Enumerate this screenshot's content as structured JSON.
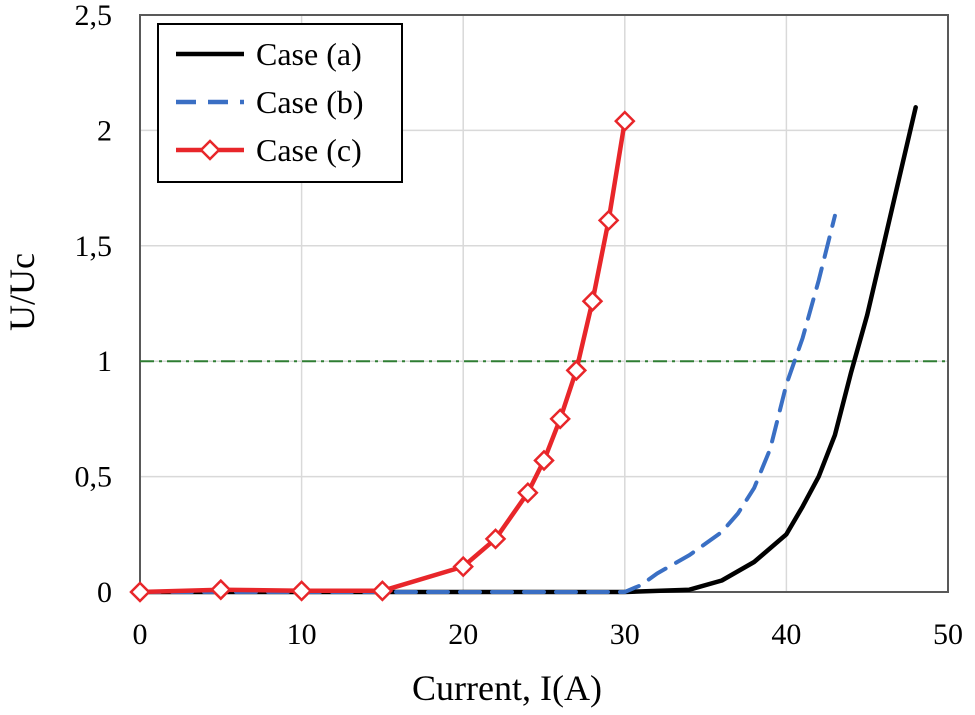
{
  "chart_data": {
    "type": "line",
    "xlabel": "Current, I(A)",
    "ylabel": "U/Uc",
    "xlim": [
      0,
      50
    ],
    "ylim": [
      0,
      2.5
    ],
    "x_ticks": [
      0,
      10,
      20,
      30,
      40,
      50
    ],
    "y_ticks": [
      0,
      0.5,
      1,
      1.5,
      2,
      2.5
    ],
    "x_tick_labels": [
      "0",
      "10",
      "20",
      "30",
      "40",
      "50"
    ],
    "y_tick_labels": [
      "0",
      "0,5",
      "1",
      "1,5",
      "2",
      "2,5"
    ],
    "grid": true,
    "legend_position": "top-left",
    "reference_line": {
      "y": 1,
      "color": "#2e7d32",
      "style": "dash-dot"
    },
    "series": [
      {
        "name": "Case (a)",
        "color": "#000000",
        "style": "solid",
        "marker": "none",
        "x": [
          0,
          10,
          20,
          30,
          34,
          36,
          38,
          40,
          41,
          42,
          43,
          44,
          45,
          46,
          47,
          48
        ],
        "y": [
          0,
          0,
          0,
          0,
          0.01,
          0.05,
          0.13,
          0.25,
          0.37,
          0.5,
          0.68,
          0.95,
          1.2,
          1.5,
          1.8,
          2.1
        ]
      },
      {
        "name": "Case (b)",
        "color": "#3a6fc4",
        "style": "dashed",
        "marker": "none",
        "x": [
          0,
          10,
          20,
          30,
          31,
          32,
          34,
          36,
          37,
          38,
          39,
          40,
          41,
          42,
          43
        ],
        "y": [
          0,
          0,
          0,
          0,
          0.03,
          0.08,
          0.16,
          0.26,
          0.34,
          0.45,
          0.62,
          0.9,
          1.1,
          1.35,
          1.63
        ]
      },
      {
        "name": "Case (c)",
        "color": "#e8262a",
        "style": "solid",
        "marker": "diamond",
        "x": [
          0,
          5,
          10,
          15,
          20,
          22,
          24,
          25,
          26,
          27,
          28,
          29,
          30
        ],
        "y": [
          0,
          0.01,
          0.005,
          0.005,
          0.11,
          0.23,
          0.43,
          0.57,
          0.75,
          0.96,
          1.26,
          1.61,
          2.04
        ]
      }
    ]
  }
}
